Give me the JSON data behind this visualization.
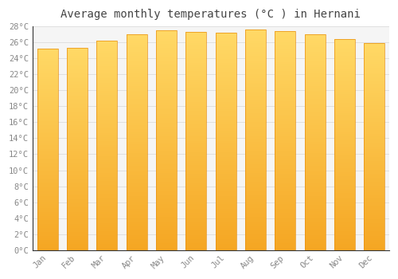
{
  "title": "Average monthly temperatures (°C ) in Hernani",
  "months": [
    "Jan",
    "Feb",
    "Mar",
    "Apr",
    "May",
    "Jun",
    "Jul",
    "Aug",
    "Sep",
    "Oct",
    "Nov",
    "Dec"
  ],
  "temperatures": [
    25.2,
    25.3,
    26.2,
    27.0,
    27.5,
    27.3,
    27.2,
    27.6,
    27.4,
    27.0,
    26.4,
    25.9
  ],
  "bar_color_bottom": "#F5A623",
  "bar_color_top": "#FFD966",
  "ylim": [
    0,
    28
  ],
  "yticks": [
    0,
    2,
    4,
    6,
    8,
    10,
    12,
    14,
    16,
    18,
    20,
    22,
    24,
    26,
    28
  ],
  "background_color": "#FFFFFF",
  "plot_bg_color": "#F5F5F5",
  "grid_color": "#DDDDDD",
  "title_fontsize": 10,
  "tick_fontsize": 7.5,
  "tick_color": "#888888",
  "title_color": "#444444",
  "bar_edge_color": "#E89010",
  "bar_width": 0.7
}
